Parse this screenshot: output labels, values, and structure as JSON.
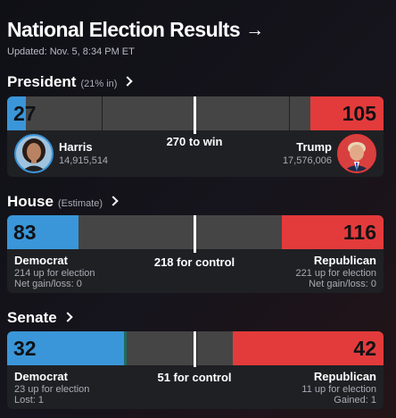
{
  "header": {
    "title": "National Election Results",
    "title_arrow": "→",
    "updated": "Updated: Nov. 5, 8:34 PM ET"
  },
  "president": {
    "title": "President",
    "note": "(21% in)",
    "dem_value": "27",
    "rep_value": "105",
    "threshold_label": "270 to win",
    "dem_share": 0.05,
    "rep_share": 0.195,
    "dem_candidate": {
      "name": "Harris",
      "votes": "14,915,514"
    },
    "rep_candidate": {
      "name": "Trump",
      "votes": "17,576,006"
    }
  },
  "house": {
    "title": "House",
    "note": "(Estimate)",
    "dem_value": "83",
    "rep_value": "116",
    "threshold_label": "218 for control",
    "dem_share": 0.19,
    "rep_share": 0.27,
    "dem": {
      "party": "Democrat",
      "up": "214 up for election",
      "change": "Net gain/loss: 0"
    },
    "rep": {
      "party": "Republican",
      "up": "221 up for election",
      "change": "Net gain/loss: 0"
    }
  },
  "senate": {
    "title": "Senate",
    "dem_value": "32",
    "rep_value": "42",
    "threshold_label": "51 for control",
    "dem_share": 0.31,
    "rep_share": 0.4,
    "dem": {
      "party": "Democrat",
      "up": "23 up for election",
      "change": "Lost: 1"
    },
    "rep": {
      "party": "Republican",
      "up": "11 up for election",
      "change": "Gained: 1"
    }
  },
  "colors": {
    "democrat": "#3a96d9",
    "republican": "#e33b3b",
    "undecided": "#454545",
    "independent": "#1f6c62"
  }
}
